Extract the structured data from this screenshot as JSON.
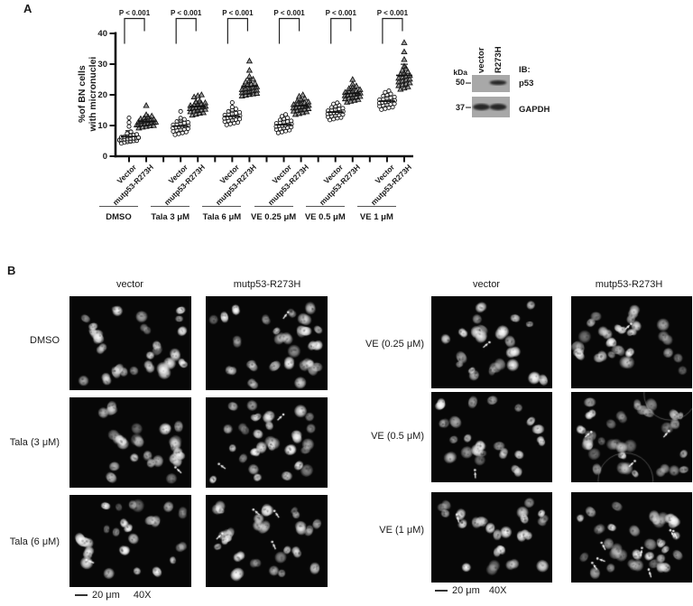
{
  "figure": {
    "panel_a_label": "A",
    "panel_b_label": "B"
  },
  "colors": {
    "background": "#ffffff",
    "text": "#1a1a1a",
    "micrograph_bg": "#070707",
    "blot_bg": "#a8a8a8"
  },
  "chart_data": {
    "type": "scatter",
    "ylabel_line1": "%of BN cells",
    "ylabel_line2": "with micronuclei",
    "ylim": [
      0,
      40
    ],
    "yticks": [
      0,
      10,
      20,
      30,
      40
    ],
    "significance_label": "P < 0.001",
    "legend_position": "none",
    "groups": [
      {
        "label": "DMSO",
        "series": [
          {
            "name": "Vector",
            "marker": "circle",
            "points": [
              4.2,
              4.5,
              4.7,
              4.8,
              5.0,
              5.1,
              5.2,
              5.3,
              5.4,
              5.5,
              5.6,
              5.7,
              5.8,
              5.9,
              6.0,
              6.1,
              6.2,
              6.3,
              6.5,
              6.7,
              6.9,
              7.1,
              7.4,
              8.0,
              9.7,
              11.0,
              12.5
            ]
          },
          {
            "name": "mutp53-R273H",
            "marker": "triangle",
            "points": [
              9.2,
              9.5,
              9.7,
              9.9,
              10.0,
              10.2,
              10.3,
              10.5,
              10.6,
              10.8,
              10.9,
              11.0,
              11.1,
              11.2,
              11.3,
              11.5,
              11.6,
              11.8,
              12.0,
              12.2,
              12.5,
              12.8,
              13.1,
              13.5,
              16.5
            ]
          }
        ]
      },
      {
        "label": "Tala 3 μM",
        "series": [
          {
            "name": "Vector",
            "marker": "circle",
            "points": [
              7.0,
              7.3,
              7.6,
              7.9,
              8.1,
              8.4,
              8.6,
              8.8,
              9.0,
              9.2,
              9.4,
              9.6,
              9.7,
              9.8,
              10.0,
              10.2,
              10.4,
              10.6,
              10.8,
              11.0,
              11.3,
              11.6,
              12.0,
              12.4,
              14.6
            ]
          },
          {
            "name": "mutp53-R273H",
            "marker": "triangle",
            "points": [
              13.4,
              13.7,
              14.0,
              14.2,
              14.5,
              14.7,
              14.9,
              15.1,
              15.3,
              15.5,
              15.7,
              15.9,
              16.0,
              16.1,
              16.3,
              16.5,
              16.7,
              16.9,
              17.1,
              17.4,
              17.7,
              18.0,
              19.3,
              19.7,
              20.0
            ]
          }
        ]
      },
      {
        "label": "Tala 6 μM",
        "series": [
          {
            "name": "Vector",
            "marker": "circle",
            "points": [
              10.2,
              10.5,
              10.8,
              11.0,
              11.3,
              11.5,
              11.7,
              11.9,
              12.1,
              12.3,
              12.5,
              12.7,
              12.9,
              13.0,
              13.2,
              13.4,
              13.6,
              13.8,
              14.0,
              14.3,
              14.6,
              15.0,
              15.4,
              16.0,
              17.5
            ]
          },
          {
            "name": "mutp53-R273H",
            "marker": "triangle",
            "points": [
              19.6,
              19.9,
              20.1,
              20.3,
              20.5,
              20.7,
              20.9,
              21.1,
              21.3,
              21.5,
              21.7,
              21.9,
              22.1,
              22.4,
              22.6,
              22.9,
              23.2,
              23.5,
              23.8,
              24.2,
              24.6,
              25.1,
              26.0,
              28.0,
              31.0
            ]
          }
        ]
      },
      {
        "label": "VE 0.25 μM",
        "series": [
          {
            "name": "Vector",
            "marker": "circle",
            "points": [
              7.6,
              7.9,
              8.2,
              8.5,
              8.7,
              8.9,
              9.1,
              9.3,
              9.5,
              9.7,
              9.9,
              10.0,
              10.1,
              10.3,
              10.5,
              10.7,
              10.9,
              11.1,
              11.3,
              11.5,
              11.8,
              12.1,
              12.5,
              13.0,
              13.6
            ]
          },
          {
            "name": "mutp53-R273H",
            "marker": "triangle",
            "points": [
              13.6,
              13.9,
              14.2,
              14.5,
              14.7,
              14.9,
              15.1,
              15.3,
              15.5,
              15.7,
              15.9,
              16.1,
              16.2,
              16.4,
              16.6,
              16.8,
              17.0,
              17.2,
              17.4,
              17.7,
              18.0,
              18.4,
              18.9,
              19.5,
              20.0
            ]
          }
        ]
      },
      {
        "label": "VE 0.5 μM",
        "series": [
          {
            "name": "Vector",
            "marker": "circle",
            "points": [
              11.8,
              12.1,
              12.4,
              12.6,
              12.8,
              13.0,
              13.2,
              13.4,
              13.6,
              13.8,
              14.0,
              14.1,
              14.2,
              14.4,
              14.6,
              14.8,
              15.0,
              15.2,
              15.4,
              15.6,
              15.9,
              16.2,
              16.6,
              17.0,
              17.4
            ]
          },
          {
            "name": "mutp53-R273H",
            "marker": "triangle",
            "points": [
              17.6,
              17.9,
              18.2,
              18.5,
              18.7,
              18.9,
              19.1,
              19.3,
              19.5,
              19.7,
              19.9,
              20.1,
              20.2,
              20.4,
              20.6,
              20.8,
              21.0,
              21.2,
              21.4,
              21.7,
              22.0,
              22.4,
              22.9,
              23.5,
              25.0
            ]
          }
        ]
      },
      {
        "label": "VE 1 μM",
        "series": [
          {
            "name": "Vector",
            "marker": "circle",
            "points": [
              15.2,
              15.5,
              15.8,
              16.0,
              16.3,
              16.5,
              16.7,
              16.9,
              17.1,
              17.3,
              17.5,
              17.7,
              17.9,
              18.0,
              18.2,
              18.4,
              18.6,
              18.8,
              19.0,
              19.3,
              19.6,
              19.9,
              20.3,
              20.8,
              21.3
            ]
          },
          {
            "name": "mutp53-R273H",
            "marker": "triangle",
            "points": [
              21.8,
              22.2,
              22.6,
              23.0,
              23.3,
              23.6,
              23.9,
              24.2,
              24.5,
              24.8,
              25.1,
              25.4,
              25.7,
              26.0,
              26.3,
              26.7,
              27.1,
              27.5,
              28.0,
              28.6,
              29.3,
              31.5,
              34.0,
              37.0
            ]
          }
        ]
      }
    ]
  },
  "western_blot": {
    "kda_label": "kDa",
    "ib_label": "IB:",
    "lane_labels": [
      "vector",
      "R273H"
    ],
    "blots": [
      {
        "marker": "50",
        "target": "p53",
        "bands": [
          false,
          true
        ]
      },
      {
        "marker": "37",
        "target": "GAPDH",
        "bands": [
          true,
          true
        ]
      }
    ]
  },
  "panel_b": {
    "left_block": {
      "col_headers": [
        "vector",
        "mutp53-R273H"
      ],
      "rows": [
        {
          "label": "DMSO"
        },
        {
          "label": "Tala (3 μM)"
        },
        {
          "label": "Tala (6 μM)"
        }
      ],
      "scale_bar": {
        "length_label": "20 μm",
        "magnification": "40X"
      }
    },
    "right_block": {
      "col_headers": [
        "vector",
        "mutp53-R273H"
      ],
      "rows": [
        {
          "label": "VE (0.25 μM)"
        },
        {
          "label": "VE (0.5 μM)"
        },
        {
          "label": "VE (1 μM)"
        }
      ],
      "scale_bar": {
        "length_label": "20 μm",
        "magnification": "40X"
      }
    },
    "cells": [
      {
        "block": "left",
        "row": 0,
        "col": 0,
        "arrows": 0,
        "bubbles": 0
      },
      {
        "block": "left",
        "row": 0,
        "col": 1,
        "arrows": 1,
        "bubbles": 0
      },
      {
        "block": "left",
        "row": 1,
        "col": 0,
        "arrows": 1,
        "bubbles": 0
      },
      {
        "block": "left",
        "row": 1,
        "col": 1,
        "arrows": 2,
        "bubbles": 0
      },
      {
        "block": "left",
        "row": 2,
        "col": 0,
        "arrows": 1,
        "bubbles": 0
      },
      {
        "block": "left",
        "row": 2,
        "col": 1,
        "arrows": 4,
        "bubbles": 0
      },
      {
        "block": "right",
        "row": 0,
        "col": 0,
        "arrows": 1,
        "bubbles": 0
      },
      {
        "block": "right",
        "row": 0,
        "col": 1,
        "arrows": 1,
        "bubbles": 0
      },
      {
        "block": "right",
        "row": 1,
        "col": 0,
        "arrows": 1,
        "bubbles": 0
      },
      {
        "block": "right",
        "row": 1,
        "col": 1,
        "arrows": 3,
        "bubbles": 2
      },
      {
        "block": "right",
        "row": 2,
        "col": 0,
        "arrows": 1,
        "bubbles": 0
      },
      {
        "block": "right",
        "row": 2,
        "col": 1,
        "arrows": 7,
        "bubbles": 0
      }
    ]
  }
}
